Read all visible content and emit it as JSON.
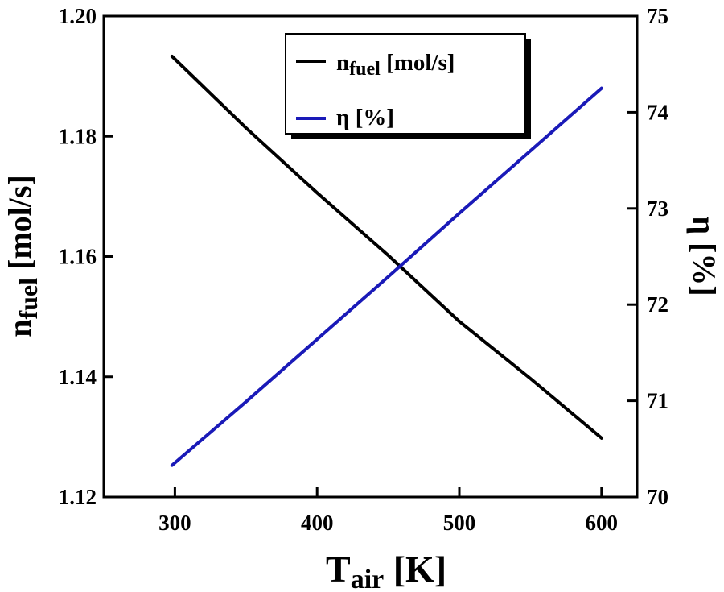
{
  "chart_data": {
    "type": "line",
    "title": "",
    "xlabel": {
      "main": "T",
      "sub": "air",
      "unit": " [K]"
    },
    "ylabel_left": {
      "main": "n",
      "sub": "fuel",
      "unit": " [mol/s]"
    },
    "ylabel_right": {
      "main": "η",
      "unit": " [%]"
    },
    "xlim": [
      250,
      625
    ],
    "ylim_left": [
      1.12,
      1.2
    ],
    "ylim_right": [
      70,
      75
    ],
    "x_ticks": [
      300,
      400,
      500,
      600
    ],
    "y_left_ticks": [
      1.12,
      1.14,
      1.16,
      1.18,
      1.2
    ],
    "y_left_tick_labels": [
      "1.12",
      "1.14",
      "1.16",
      "1.18",
      "1.20"
    ],
    "y_right_ticks": [
      70,
      71,
      72,
      73,
      74,
      75
    ],
    "y_right_tick_labels": [
      "70",
      "71",
      "72",
      "73",
      "74",
      "75"
    ],
    "series": [
      {
        "name": "nfuel [mol/s]",
        "legend_main": "n",
        "legend_sub": "fuel",
        "legend_unit": " [mol/s]",
        "axis": "left",
        "color": "#000000",
        "x": [
          298,
          350,
          400,
          450,
          500,
          550,
          600
        ],
        "y": [
          1.1933,
          1.1814,
          1.1706,
          1.1602,
          1.1492,
          1.1397,
          1.1298
        ]
      },
      {
        "name": "η [%]",
        "legend_main": "η",
        "legend_unit": " [%]",
        "axis": "right",
        "color": "#1a1ab8",
        "x": [
          298,
          350,
          400,
          450,
          500,
          550,
          600
        ],
        "y": [
          70.33,
          70.99,
          71.64,
          72.29,
          72.95,
          73.6,
          74.25
        ]
      }
    ],
    "legend_position": "top-right",
    "grid": false
  }
}
